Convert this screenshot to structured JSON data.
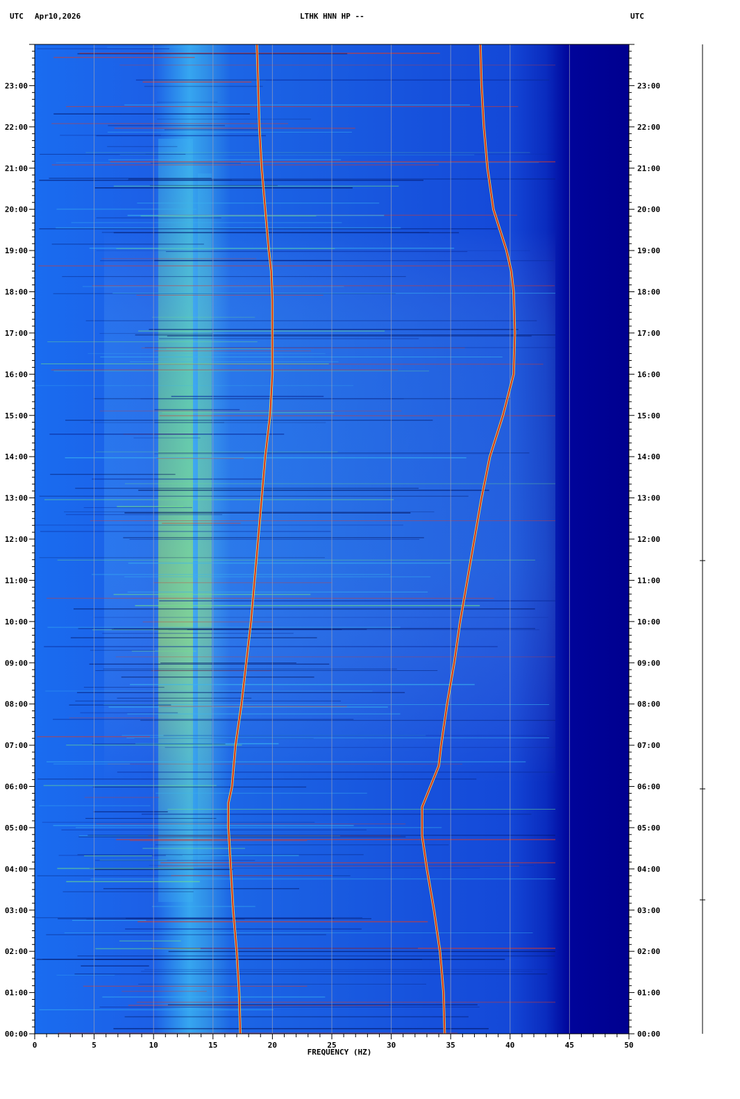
{
  "header": {
    "left_tz": "UTC",
    "date": "Apr10,2026",
    "station": "LTHK HNN HP --",
    "right_tz": "UTC"
  },
  "chart_data": {
    "type": "heatmap",
    "title": "LTHK HNN HP --",
    "xlabel": "FREQUENCY (HZ)",
    "ylabel": "",
    "xlim": [
      0,
      50
    ],
    "ylim_hours": [
      0,
      24
    ],
    "x_ticks": [
      "0",
      "5",
      "10",
      "15",
      "20",
      "25",
      "30",
      "35",
      "40",
      "45",
      "50"
    ],
    "y_ticks": [
      "00:00",
      "01:00",
      "02:00",
      "03:00",
      "04:00",
      "05:00",
      "06:00",
      "07:00",
      "08:00",
      "09:00",
      "10:00",
      "11:00",
      "12:00",
      "13:00",
      "14:00",
      "15:00",
      "16:00",
      "17:00",
      "18:00",
      "19:00",
      "20:00",
      "21:00",
      "22:00",
      "23:00"
    ],
    "grid": true,
    "series": [
      {
        "hours": [
          0,
          1,
          2,
          3,
          4,
          5,
          5.6,
          6.0,
          7,
          8,
          9,
          10,
          11,
          12,
          13,
          14,
          15,
          16,
          17,
          17.8,
          18.5,
          19,
          20,
          21,
          22,
          23,
          24
        ],
        "freq": [
          17.3,
          17.2,
          17.0,
          16.7,
          16.5,
          16.3,
          16.3,
          16.6,
          16.9,
          17.4,
          17.8,
          18.2,
          18.5,
          18.8,
          19.1,
          19.4,
          19.8,
          20.0,
          20.0,
          20.0,
          19.9,
          19.7,
          19.4,
          19.1,
          18.9,
          18.8,
          18.7
        ]
      },
      {
        "hours": [
          0,
          1,
          2,
          3,
          4,
          4.8,
          5.5,
          6.0,
          6.5,
          7,
          8,
          9,
          10,
          11,
          12,
          13,
          14,
          15,
          16,
          17,
          18,
          18.5,
          19,
          20,
          21,
          22,
          23,
          24
        ],
        "freq": [
          34.5,
          34.4,
          34.1,
          33.6,
          33.0,
          32.6,
          32.6,
          33.3,
          34.0,
          34.2,
          34.7,
          35.3,
          35.8,
          36.4,
          37.0,
          37.6,
          38.3,
          39.4,
          40.3,
          40.4,
          40.3,
          40.1,
          39.7,
          38.6,
          38.1,
          37.8,
          37.6,
          37.5
        ]
      }
    ],
    "colors": {
      "background_low": "#00008f",
      "background_mid": "#0a46e6",
      "energy_high": "#ffe84a",
      "peak": "#d01818"
    }
  }
}
